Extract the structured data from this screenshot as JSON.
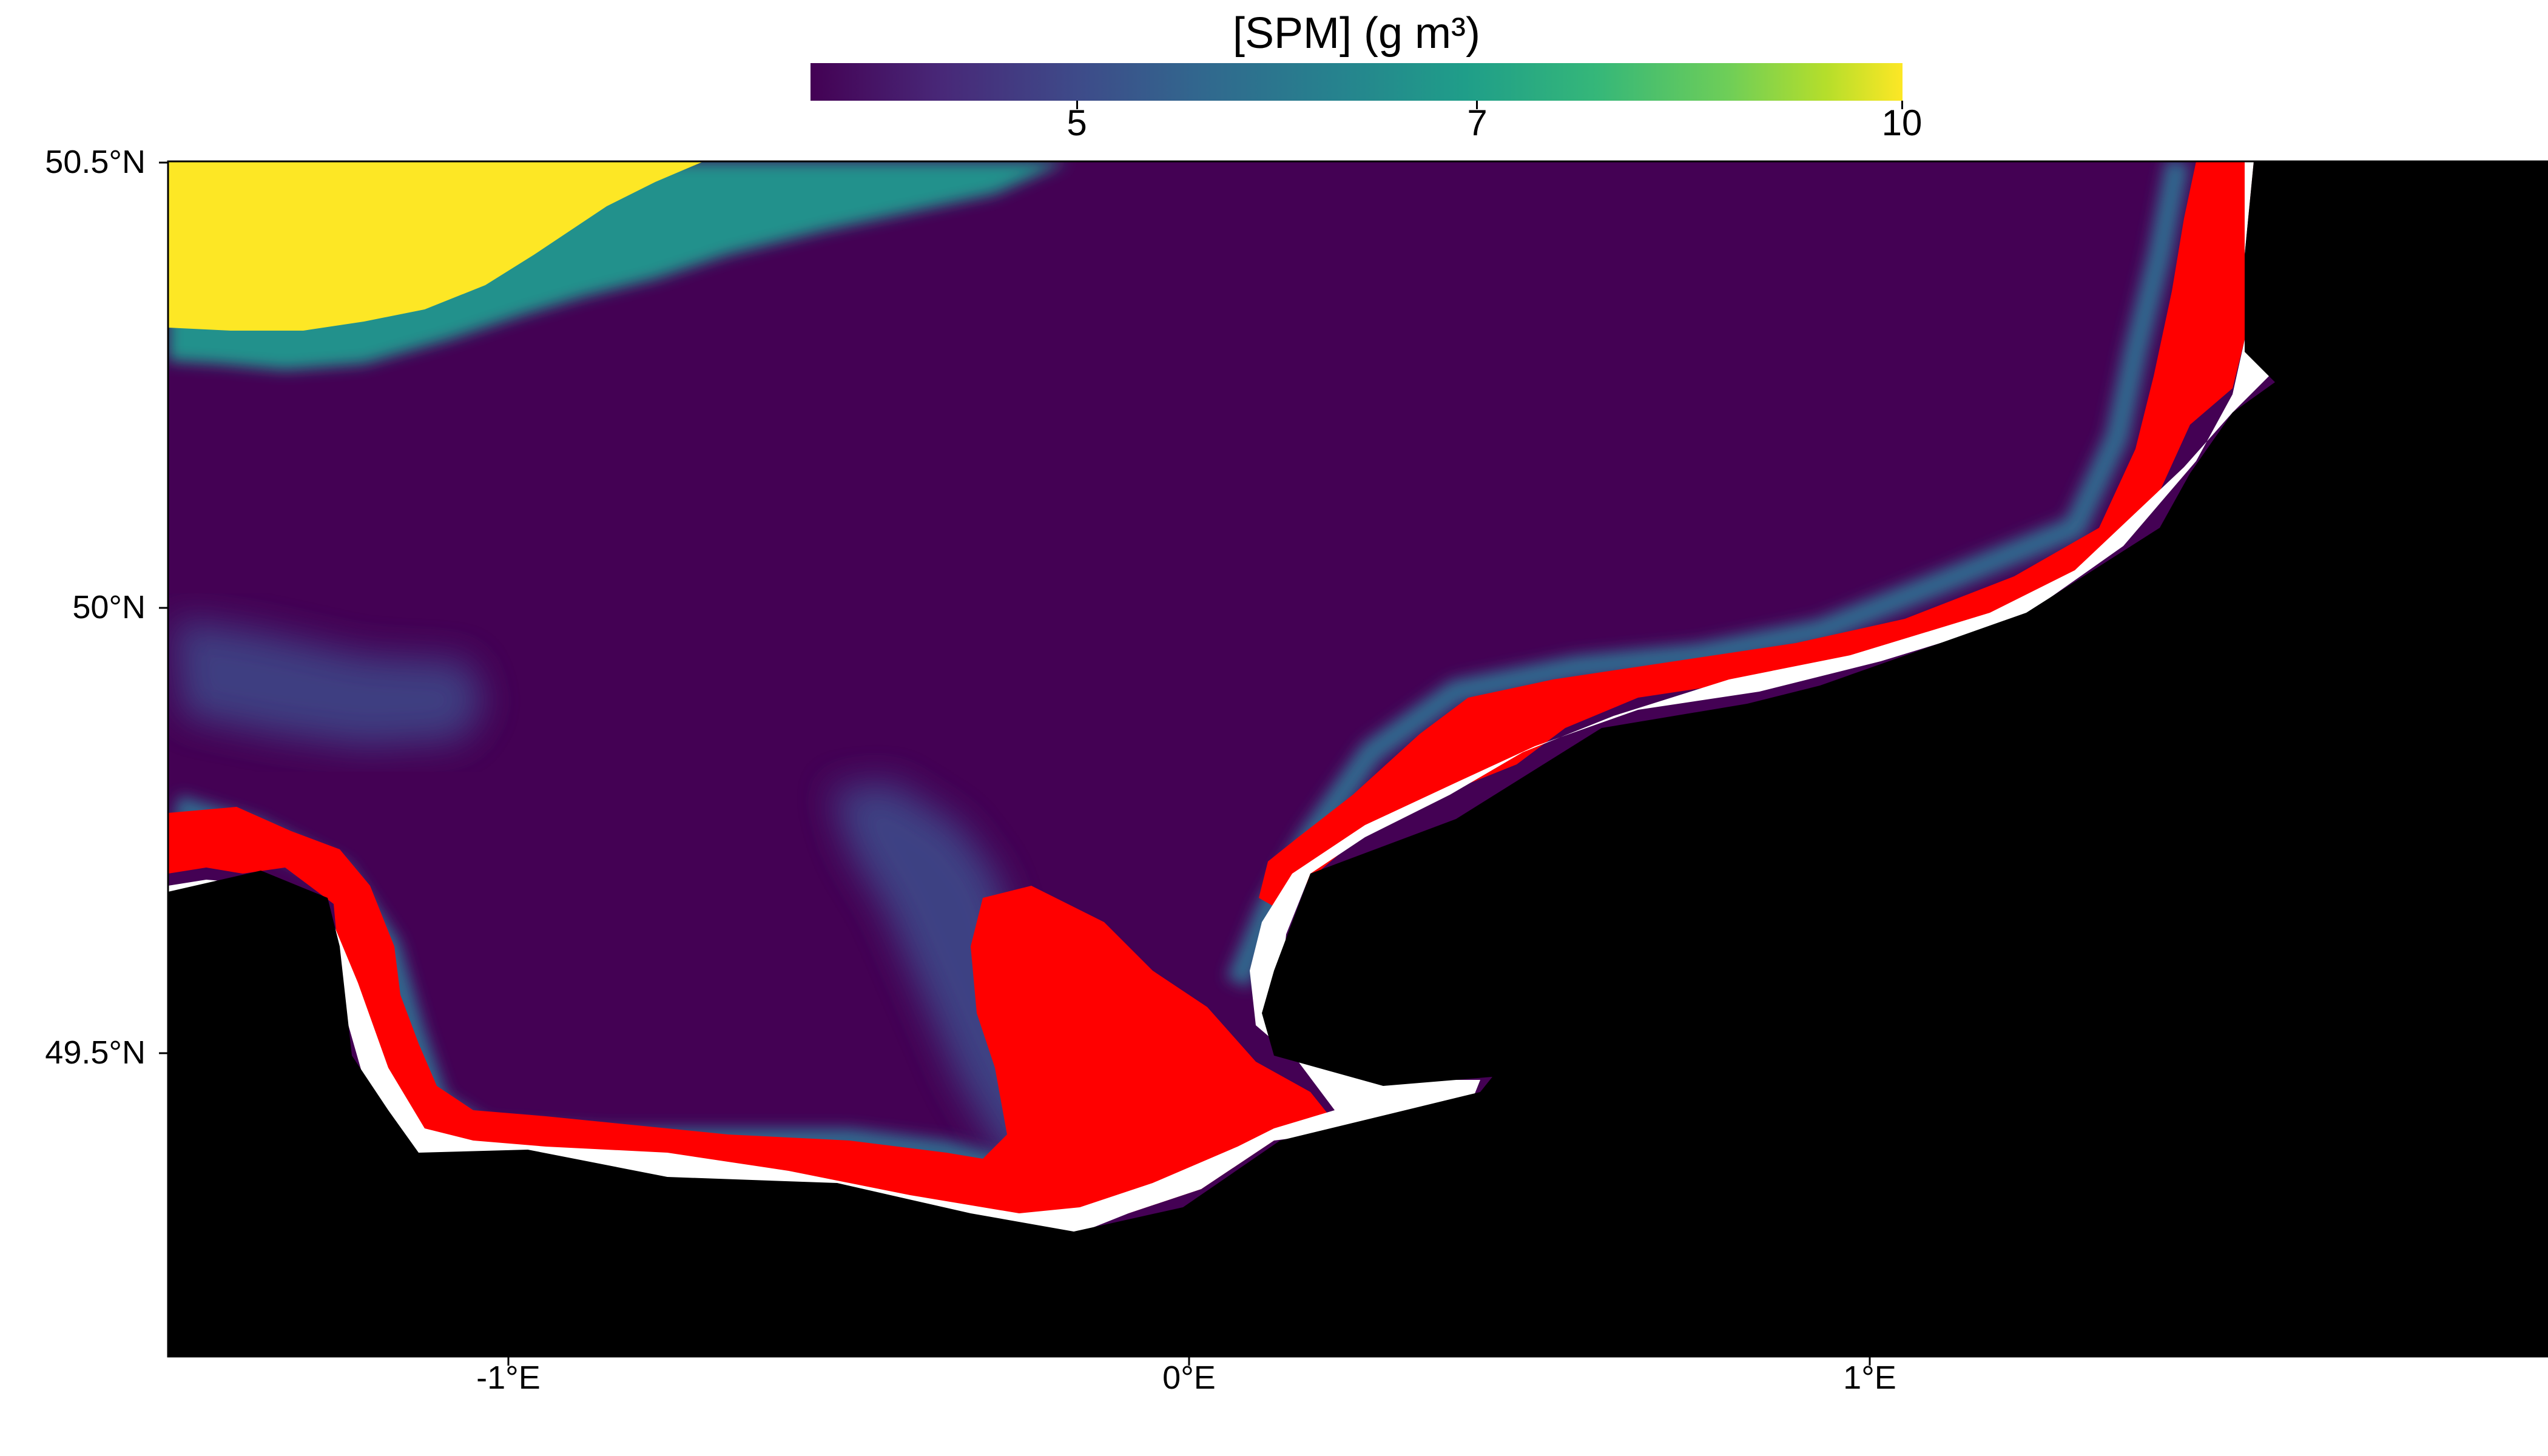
{
  "colorbar": {
    "title": "[SPM] (g m³)",
    "ticks": [
      {
        "value": 5,
        "label": "5"
      },
      {
        "value": 7,
        "label": "7"
      },
      {
        "value": 10,
        "label": "10"
      }
    ],
    "range": [
      2.5,
      10
    ],
    "colormap": "viridis"
  },
  "axes": {
    "lat_ticks": [
      {
        "value": 50.5,
        "label": "50.5°N"
      },
      {
        "value": 50.0,
        "label": "50°N"
      },
      {
        "value": 49.5,
        "label": "49.5°N"
      }
    ],
    "lon_ticks": [
      {
        "value": -1,
        "label": "-1°E"
      },
      {
        "value": 0,
        "label": "0°E"
      },
      {
        "value": 1,
        "label": "1°E"
      }
    ],
    "lon_range": [
      -1.5,
      2.0
    ],
    "lat_range": [
      49.16,
      50.5
    ]
  },
  "legend_colors": {
    "land": "#000000",
    "no_data": "#ffffff",
    "above_range": "#ff0000",
    "high_spm": "#fde725",
    "low_spm": "#440154"
  }
}
